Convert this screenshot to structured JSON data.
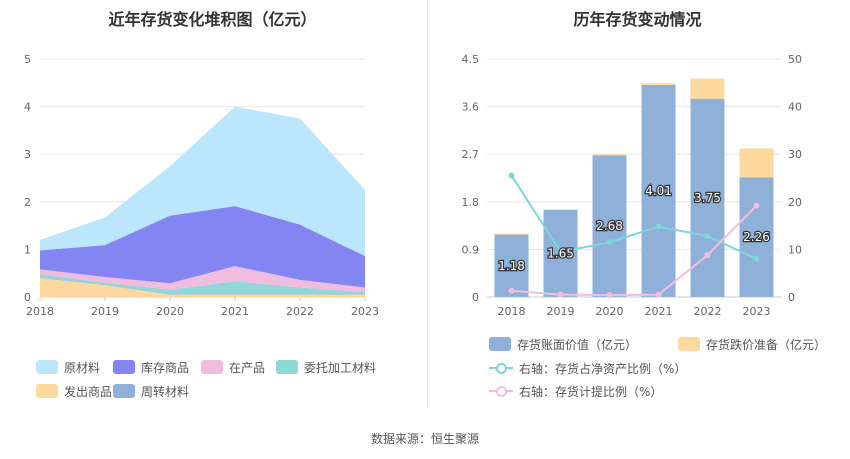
{
  "left": {
    "title": "近年存货变化堆积图（亿元）",
    "chart_data": {
      "type": "area",
      "x": [
        "2018",
        "2019",
        "2020",
        "2021",
        "2022",
        "2023"
      ],
      "ylim": [
        0,
        5
      ],
      "yticks": [
        0,
        1,
        2,
        3,
        4,
        5
      ],
      "grid": true,
      "legend_position": "bottom",
      "series": [
        {
          "name": "发出商品",
          "color": "#fdd9a0",
          "values": [
            0.4,
            0.25,
            0.05,
            0.05,
            0.05,
            0.05
          ]
        },
        {
          "name": "周转材料",
          "color": "#8fb0d9",
          "values": [
            0.01,
            0.01,
            0.01,
            0.01,
            0.01,
            0.01
          ]
        },
        {
          "name": "委托加工材料",
          "color": "#8ed8d8",
          "values": [
            0.07,
            0.04,
            0.09,
            0.27,
            0.14,
            0.04
          ]
        },
        {
          "name": "在产品",
          "color": "#f0bce0",
          "values": [
            0.1,
            0.12,
            0.14,
            0.32,
            0.16,
            0.1
          ]
        },
        {
          "name": "库存商品",
          "color": "#8385f2",
          "values": [
            0.4,
            0.67,
            1.42,
            1.26,
            1.16,
            0.66
          ]
        },
        {
          "name": "原材料",
          "color": "#bce6fb",
          "values": [
            0.22,
            0.58,
            1.04,
            2.09,
            2.23,
            1.39
          ]
        }
      ],
      "legend_order": [
        "原材料",
        "库存商品",
        "在产品",
        "委托加工材料",
        "发出商品",
        "周转材料"
      ]
    }
  },
  "right": {
    "title": "历年存货变动情况",
    "chart_data": {
      "type": "bar",
      "categories": [
        "2018",
        "2019",
        "2020",
        "2021",
        "2022",
        "2023"
      ],
      "ylim_left": [
        0,
        4.5
      ],
      "yticks_left": [
        "0",
        "0.9",
        "1.8",
        "2.7",
        "3.6",
        "4.5"
      ],
      "ylim_right": [
        0,
        50
      ],
      "yticks_right": [
        "0",
        "10",
        "20",
        "30",
        "40",
        "50"
      ],
      "grid": true,
      "legend_position": "bottom",
      "bar_series": [
        {
          "name": "存货账面价值（亿元）",
          "color": "#8fb0d9",
          "values": [
            1.18,
            1.65,
            2.68,
            4.01,
            3.75,
            2.26
          ]
        },
        {
          "name": "存货跌价准备（亿元）",
          "color": "#fdd9a0",
          "values": [
            0.02,
            0.0,
            0.02,
            0.03,
            0.38,
            0.55
          ]
        }
      ],
      "line_series": [
        {
          "name": "右轴：存货占净资产比例（%）",
          "color": "#7ed6d8",
          "values": [
            25.5,
            9.5,
            11.5,
            14.8,
            12.8,
            8.0
          ]
        },
        {
          "name": "右轴：存货计提比例（%）",
          "color": "#f1bfdf",
          "values": [
            1.3,
            0.5,
            0.4,
            0.5,
            8.8,
            19.2
          ]
        }
      ],
      "data_labels": [
        "1.18",
        "1.65",
        "2.68",
        "4.01",
        "3.75",
        "2.26"
      ]
    }
  },
  "source": "数据来源：恒生聚源"
}
